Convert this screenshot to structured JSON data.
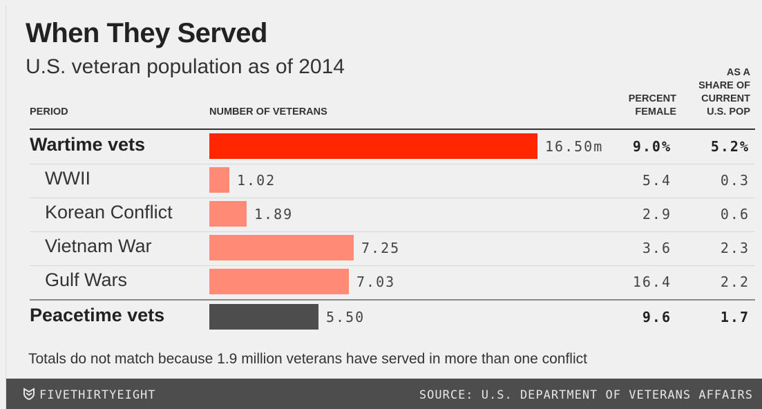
{
  "title": "When They Served",
  "subtitle": "U.S. veteran population as of 2014",
  "headers": {
    "period": "PERIOD",
    "number": "NUMBER OF VETERANS",
    "female_1": "PERCENT",
    "female_2": "FEMALE",
    "share_1": "AS A",
    "share_2": "SHARE OF",
    "share_3": "CURRENT",
    "share_4": "U.S. POP"
  },
  "colors": {
    "wartime": "#ff2600",
    "conflict": "#ff8a75",
    "peacetime": "#4d4d4d"
  },
  "chart_data": {
    "type": "bar",
    "orientation": "horizontal",
    "unit": "millions",
    "rows": [
      {
        "period": "Wartime vets",
        "veterans": 16.5,
        "veterans_label": "16.50m",
        "percent_female": "9.0%",
        "share_pop": "5.2%",
        "style": "wartime",
        "bold": true
      },
      {
        "period": "WWII",
        "veterans": 1.02,
        "veterans_label": "1.02",
        "percent_female": "5.4",
        "share_pop": "0.3",
        "style": "conflict",
        "bold": false
      },
      {
        "period": "Korean Conflict",
        "veterans": 1.89,
        "veterans_label": "1.89",
        "percent_female": "2.9",
        "share_pop": "0.6",
        "style": "conflict",
        "bold": false
      },
      {
        "period": "Vietnam War",
        "veterans": 7.25,
        "veterans_label": "7.25",
        "percent_female": "3.6",
        "share_pop": "2.3",
        "style": "conflict",
        "bold": false
      },
      {
        "period": "Gulf Wars",
        "veterans": 7.03,
        "veterans_label": "7.03",
        "percent_female": "16.4",
        "share_pop": "2.2",
        "style": "conflict",
        "bold": false
      },
      {
        "period": "Peacetime vets",
        "veterans": 5.5,
        "veterans_label": "5.50",
        "percent_female": "9.6",
        "share_pop": "1.7",
        "style": "peacetime",
        "bold": true
      }
    ]
  },
  "footnote": "Totals do not match because 1.9 million veterans have served in more than one conflict",
  "footer": {
    "brand": "FIVETHIRTYEIGHT",
    "brand_icon": "fivethirtyeight-logo-icon",
    "source": "SOURCE: U.S. DEPARTMENT OF VETERANS AFFAIRS"
  }
}
